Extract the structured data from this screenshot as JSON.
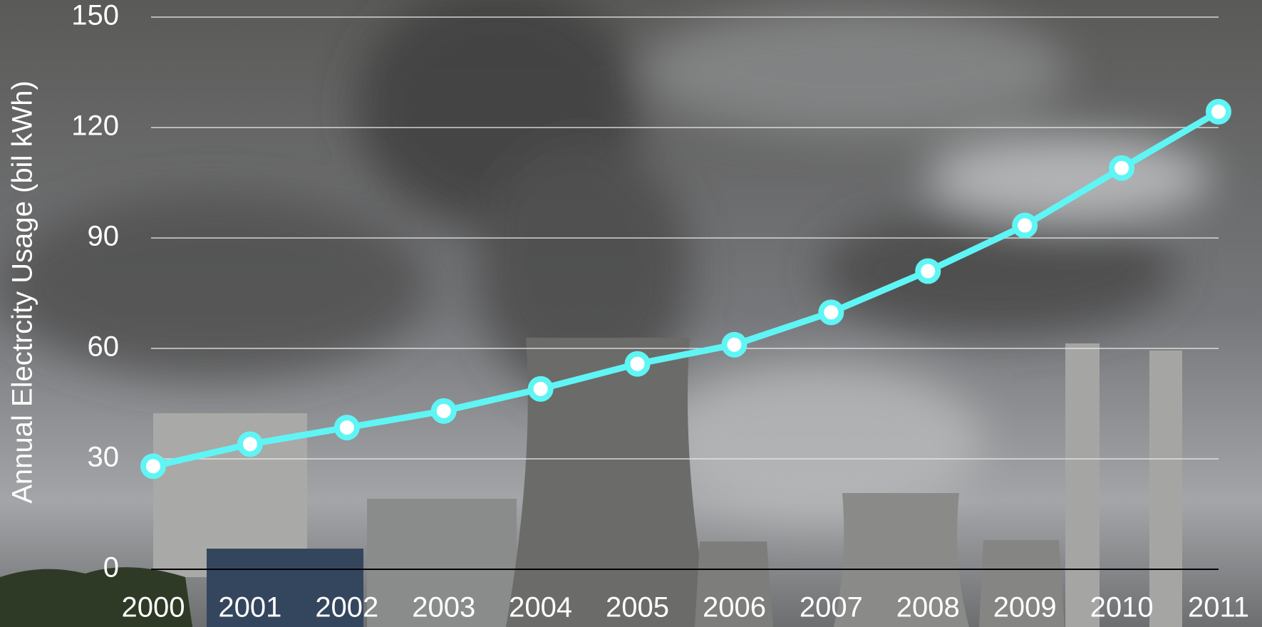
{
  "chart_data": {
    "type": "line",
    "y_label": "Annual Electrcity Usage (bil kWh)",
    "categories": [
      "2000",
      "2001",
      "2002",
      "2003",
      "2004",
      "2005",
      "2006",
      "2007",
      "2008",
      "2009",
      "2010",
      "2011"
    ],
    "values": [
      28,
      34,
      38.5,
      43,
      49,
      55.8,
      61,
      69.8,
      81,
      93.4,
      109,
      124.3
    ],
    "color": "#5ff5f5",
    "ylim": [
      0,
      150
    ],
    "yticks": [
      0,
      30,
      60,
      90,
      120,
      150
    ],
    "grid": true
  }
}
